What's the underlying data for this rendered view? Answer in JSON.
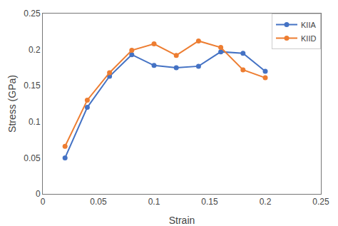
{
  "chart_data": {
    "type": "line",
    "xlabel": "Strain",
    "ylabel": "Stress (GPa)",
    "x": [
      0.02,
      0.04,
      0.06,
      0.08,
      0.1,
      0.12,
      0.14,
      0.16,
      0.18,
      0.2
    ],
    "series": [
      {
        "name": "KIIA",
        "color": "#4472c4",
        "marker": "circle",
        "values": [
          0.05,
          0.12,
          0.163,
          0.193,
          0.178,
          0.175,
          0.177,
          0.197,
          0.195,
          0.17
        ]
      },
      {
        "name": "KIID",
        "color": "#ed7d31",
        "marker": "circle",
        "values": [
          0.066,
          0.13,
          0.168,
          0.199,
          0.208,
          0.192,
          0.212,
          0.203,
          0.172,
          0.161
        ]
      }
    ],
    "xlim": [
      0,
      0.25
    ],
    "ylim": [
      0,
      0.25
    ],
    "xticks": [
      0,
      0.05,
      0.1,
      0.15,
      0.2,
      0.25
    ],
    "yticks": [
      0,
      0.05,
      0.1,
      0.15,
      0.2,
      0.25
    ],
    "grid": false,
    "legend": "upper right"
  }
}
